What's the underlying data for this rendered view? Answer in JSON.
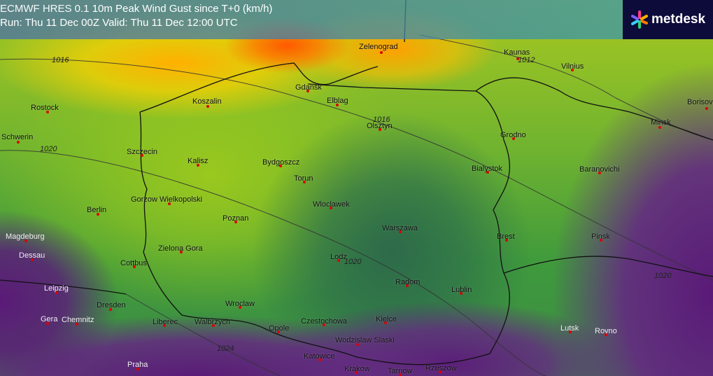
{
  "header": {
    "model": "ECMWF HRES 0.1",
    "parameter": "10m Peak Wind Gust since T+0 (km/h)",
    "run_valid": "Run: Thu 11 Dec 00Z Valid: Thu 11 Dec 12:00 UTC"
  },
  "logo": {
    "text": "metdesk",
    "colors": [
      "#ff3b8d",
      "#ffb000",
      "#3ad1ff",
      "#7a5cff",
      "#33d17a"
    ]
  },
  "colors": {
    "high_gust": "#ff5a00",
    "moderate_gust": "#ffc000",
    "low_gust": "#5a1a78",
    "mid_gust": "#6fb330",
    "city_dot": "#dd0000"
  },
  "isobars": [
    "1016",
    "1012",
    "1016",
    "1020",
    "1020",
    "1024",
    "1020"
  ],
  "cities": [
    "Zelenograd",
    "Kaunas",
    "Vilnius",
    "Borisov",
    "Minsk",
    "Rostock",
    "Koszalin",
    "Gdansk",
    "Elblag",
    "Olsztyn",
    "Grodno",
    "Schwerin",
    "Szczecin",
    "Kalisz",
    "Bydgoszcz",
    "Torun",
    "Bialystok",
    "Baranovichi",
    "Gorzow Wielkopolski",
    "Berlin",
    "Wloclawek",
    "Poznan",
    "Warszawa",
    "Brest",
    "Pinsk",
    "Magdeburg",
    "Dessau",
    "Zielona Gora",
    "Cottbus",
    "Lodz",
    "Radom",
    "Lublin",
    "Leipzig",
    "Dresden",
    "Wroclaw",
    "Gera",
    "Chemnitz",
    "Liberec",
    "Walbrzych",
    "Opole",
    "Czestochowa",
    "Kielce",
    "Wodzislaw Slaski",
    "Lutsk",
    "Rovno",
    "Praha",
    "Katowice",
    "Krakow",
    "Tarnow",
    "Rzeszow"
  ]
}
